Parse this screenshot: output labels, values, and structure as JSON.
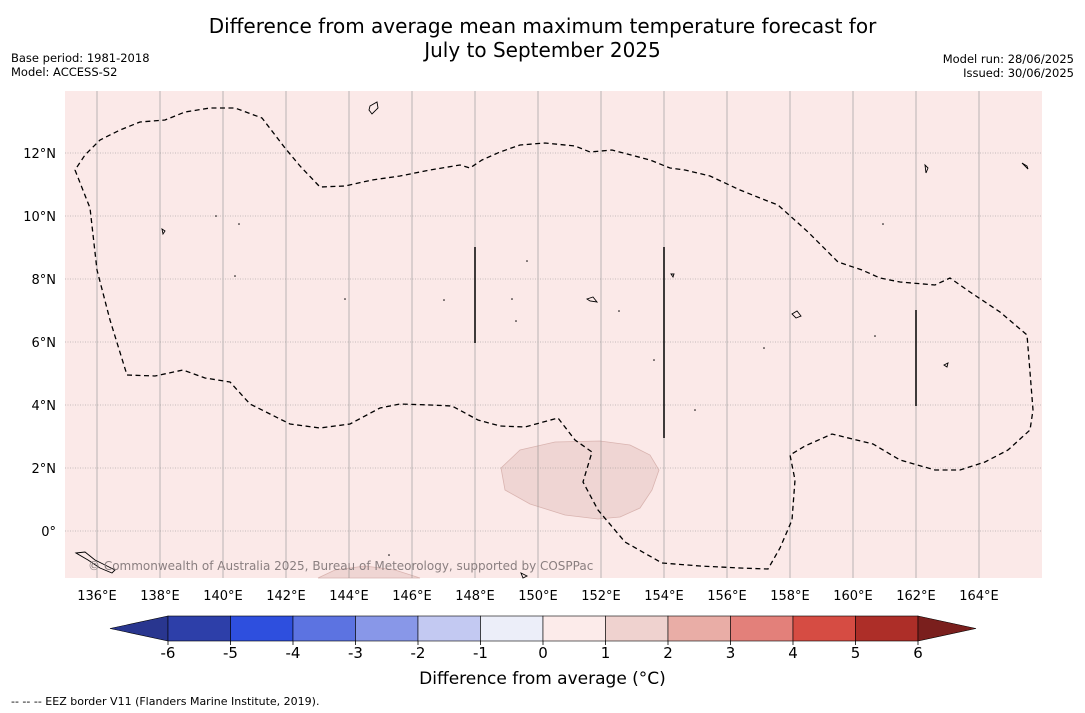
{
  "title": {
    "line1": "Difference from average mean maximum temperature forecast for",
    "line2": "July to September 2025"
  },
  "meta_left": {
    "base_period": "Base period: 1981-2018",
    "model": "Model: ACCESS-S2"
  },
  "meta_right": {
    "model_run": "Model run: 28/06/2025",
    "issued": "Issued: 30/06/2025"
  },
  "map": {
    "lon_labels": [
      "136°E",
      "138°E",
      "140°E",
      "142°E",
      "144°E",
      "146°E",
      "148°E",
      "150°E",
      "152°E",
      "154°E",
      "156°E",
      "158°E",
      "160°E",
      "162°E",
      "164°E"
    ],
    "lat_labels": [
      "12°N",
      "10°N",
      "8°N",
      "6°N",
      "4°N",
      "2°N",
      "0°"
    ],
    "background_color": "#fbe9e8",
    "anomaly_patch_color": "#efd5d3",
    "copyright": "© Commonwealth of Australia 2025, Bureau of Meteorology, supported by COSPPac"
  },
  "colorbar": {
    "ticks": [
      "-6",
      "-5",
      "-4",
      "-3",
      "-2",
      "-1",
      "0",
      "1",
      "2",
      "3",
      "4",
      "5",
      "6"
    ],
    "colors": [
      "#29368f",
      "#2d3fa9",
      "#2e4fde",
      "#5c73e1",
      "#8897e8",
      "#c3c9f2",
      "#eceef9",
      "#fcebea",
      "#efd2cf",
      "#e9ada6",
      "#e3807a",
      "#d64c43",
      "#ad2e28",
      "#7a1f1d"
    ],
    "title": "Difference from average (°C)"
  },
  "footnote": "-- -- -- EEZ border V11 (Flanders Marine Institute, 2019)."
}
